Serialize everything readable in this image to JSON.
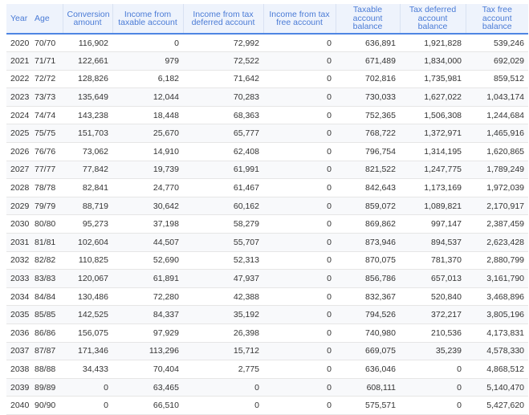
{
  "headers": [
    "Year",
    "Age",
    "Conversion amount",
    "Income from taxable account",
    "Income from tax deferred account",
    "Income from tax free account",
    "Taxable account balance",
    "Tax deferred account balance",
    "Tax free account balance"
  ],
  "rows": [
    [
      "2020",
      "70/70",
      "116,902",
      "0",
      "72,992",
      "0",
      "636,891",
      "1,921,828",
      "539,246"
    ],
    [
      "2021",
      "71/71",
      "122,661",
      "979",
      "72,522",
      "0",
      "671,489",
      "1,834,000",
      "692,029"
    ],
    [
      "2022",
      "72/72",
      "128,826",
      "6,182",
      "71,642",
      "0",
      "702,816",
      "1,735,981",
      "859,512"
    ],
    [
      "2023",
      "73/73",
      "135,649",
      "12,044",
      "70,283",
      "0",
      "730,033",
      "1,627,022",
      "1,043,174"
    ],
    [
      "2024",
      "74/74",
      "143,238",
      "18,448",
      "68,363",
      "0",
      "752,365",
      "1,506,308",
      "1,244,684"
    ],
    [
      "2025",
      "75/75",
      "151,703",
      "25,670",
      "65,777",
      "0",
      "768,722",
      "1,372,971",
      "1,465,916"
    ],
    [
      "2026",
      "76/76",
      "73,062",
      "14,910",
      "62,408",
      "0",
      "796,754",
      "1,314,195",
      "1,620,865"
    ],
    [
      "2027",
      "77/77",
      "77,842",
      "19,739",
      "61,991",
      "0",
      "821,522",
      "1,247,775",
      "1,789,249"
    ],
    [
      "2028",
      "78/78",
      "82,841",
      "24,770",
      "61,467",
      "0",
      "842,643",
      "1,173,169",
      "1,972,039"
    ],
    [
      "2029",
      "79/79",
      "88,719",
      "30,642",
      "60,162",
      "0",
      "859,072",
      "1,089,821",
      "2,170,917"
    ],
    [
      "2030",
      "80/80",
      "95,273",
      "37,198",
      "58,279",
      "0",
      "869,862",
      "997,147",
      "2,387,459"
    ],
    [
      "2031",
      "81/81",
      "102,604",
      "44,507",
      "55,707",
      "0",
      "873,946",
      "894,537",
      "2,623,428"
    ],
    [
      "2032",
      "82/82",
      "110,825",
      "52,690",
      "52,313",
      "0",
      "870,075",
      "781,370",
      "2,880,799"
    ],
    [
      "2033",
      "83/83",
      "120,067",
      "61,891",
      "47,937",
      "0",
      "856,786",
      "657,013",
      "3,161,790"
    ],
    [
      "2034",
      "84/84",
      "130,486",
      "72,280",
      "42,388",
      "0",
      "832,367",
      "520,840",
      "3,468,896"
    ],
    [
      "2035",
      "85/85",
      "142,525",
      "84,337",
      "35,192",
      "0",
      "794,526",
      "372,217",
      "3,805,196"
    ],
    [
      "2036",
      "86/86",
      "156,075",
      "97,929",
      "26,398",
      "0",
      "740,980",
      "210,536",
      "4,173,831"
    ],
    [
      "2037",
      "87/87",
      "171,346",
      "113,296",
      "15,712",
      "0",
      "669,075",
      "35,239",
      "4,578,330"
    ],
    [
      "2038",
      "88/88",
      "34,433",
      "70,404",
      "2,775",
      "0",
      "636,046",
      "0",
      "4,868,512"
    ],
    [
      "2039",
      "89/89",
      "0",
      "63,465",
      "0",
      "0",
      "608,111",
      "0",
      "5,140,470"
    ],
    [
      "2040",
      "90/90",
      "0",
      "66,510",
      "0",
      "0",
      "575,571",
      "0",
      "5,427,620"
    ]
  ]
}
